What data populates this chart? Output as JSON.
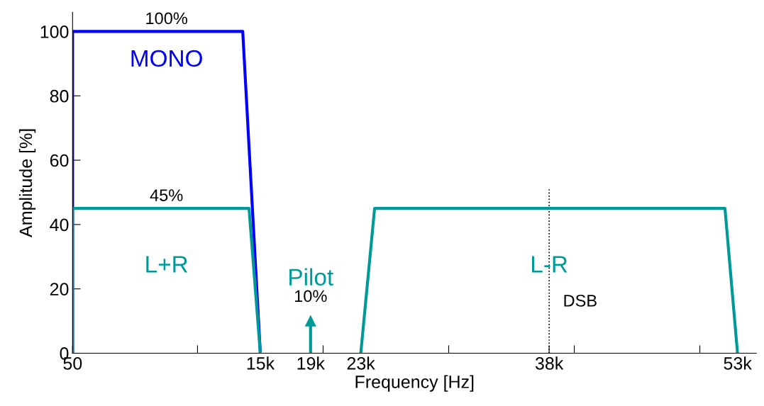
{
  "chart_data": {
    "type": "line",
    "xlabel": "Frequency [Hz]",
    "ylabel": "Amplitude [%]",
    "xlim": [
      50,
      54500
    ],
    "ylim": [
      0,
      106
    ],
    "xticks": [
      {
        "value": 50,
        "label": "50"
      },
      {
        "value": 10000,
        "label": null
      },
      {
        "value": 15000,
        "label": "15k"
      },
      {
        "value": 19000,
        "label": "19k"
      },
      {
        "value": 20000,
        "label": null
      },
      {
        "value": 23000,
        "label": "23k"
      },
      {
        "value": 30000,
        "label": null
      },
      {
        "value": 38000,
        "label": "38k"
      },
      {
        "value": 40000,
        "label": null
      },
      {
        "value": 50000,
        "label": null
      },
      {
        "value": 53000,
        "label": "53k"
      }
    ],
    "yticks": [
      0,
      20,
      40,
      60,
      80,
      100
    ],
    "grid": false,
    "legend": false,
    "marker": "none",
    "line_style": "solid",
    "series": [
      {
        "name": "MONO",
        "color": "#0000ff",
        "x": [
          50,
          50,
          13600,
          15000
        ],
        "values": [
          0,
          100,
          100,
          0
        ]
      },
      {
        "name": "L+R",
        "color": "#009999",
        "x": [
          50,
          50,
          14100,
          15000
        ],
        "values": [
          0,
          45,
          45,
          0
        ]
      },
      {
        "name": "Pilot",
        "color": "#009999",
        "x": [
          19000,
          19000
        ],
        "values": [
          0,
          10
        ],
        "marker": "triangle"
      },
      {
        "color": "#000000",
        "x": [
          38000,
          38000
        ],
        "values": [
          0,
          51
        ],
        "line_style": "dotted"
      },
      {
        "name": "L-R",
        "color": "#009999",
        "x": [
          23000,
          24100,
          52000,
          53000
        ],
        "values": [
          0,
          45,
          45,
          0
        ]
      }
    ],
    "annotations": [
      "100%",
      "45%",
      "10%",
      "DSB"
    ]
  }
}
